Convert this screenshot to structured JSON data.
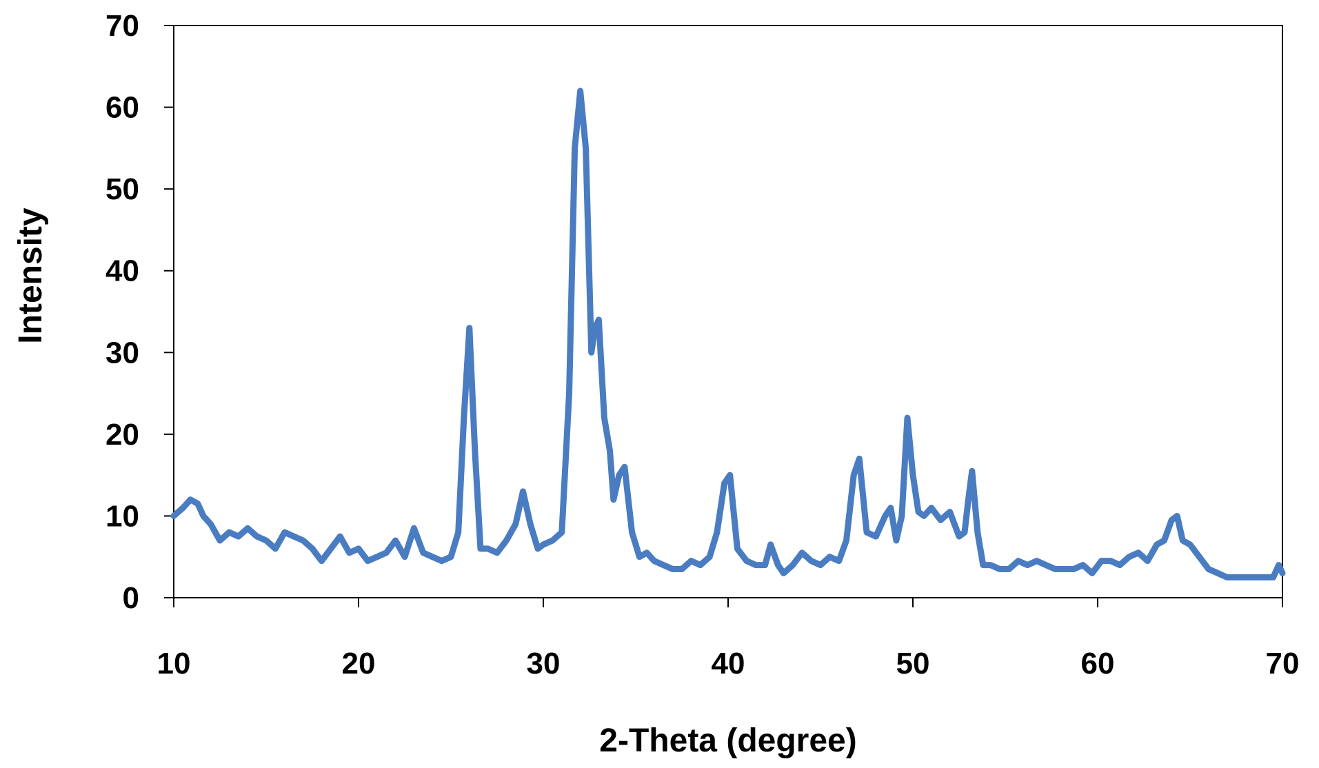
{
  "chart_data": {
    "type": "line",
    "title": "",
    "xlabel": "2-Theta (degree)",
    "ylabel": "Intensity",
    "xlim": [
      10,
      70
    ],
    "ylim": [
      0,
      70
    ],
    "x_ticks": [
      10,
      20,
      30,
      40,
      50,
      60,
      70
    ],
    "y_ticks": [
      0,
      10,
      20,
      30,
      40,
      50,
      60,
      70
    ],
    "grid": false,
    "legend": "none",
    "line_color": "#4a7cc1",
    "series": [
      {
        "x": [
          10,
          10.5,
          10.9,
          11.3,
          11.6,
          12.0,
          12.5,
          13.0,
          13.5,
          14.0,
          14.5,
          15.0,
          15.5,
          16.0,
          16.5,
          17.0,
          17.5,
          18.0,
          18.5,
          19.0,
          19.5,
          20.0,
          20.5,
          21.0,
          21.5,
          22.0,
          22.5,
          23.0,
          23.5,
          24.0,
          24.5,
          25.0,
          25.4,
          25.7,
          26.0,
          26.3,
          26.6,
          27.0,
          27.5,
          28.0,
          28.5,
          28.9,
          29.3,
          29.7,
          30.0,
          30.5,
          31.0,
          31.4,
          31.7,
          32.0,
          32.3,
          32.6,
          32.8,
          33.0,
          33.3,
          33.6,
          33.8,
          34.1,
          34.4,
          34.8,
          35.2,
          35.6,
          36.0,
          36.5,
          37.0,
          37.5,
          38.0,
          38.5,
          39.0,
          39.4,
          39.8,
          40.1,
          40.5,
          41.0,
          41.5,
          42.0,
          42.3,
          42.7,
          43.0,
          43.5,
          44.0,
          44.5,
          45.0,
          45.5,
          46.0,
          46.4,
          46.8,
          47.1,
          47.5,
          48.0,
          48.5,
          48.8,
          49.1,
          49.4,
          49.7,
          50.0,
          50.3,
          50.6,
          51.0,
          51.5,
          52.0,
          52.5,
          52.8,
          53.0,
          53.2,
          53.5,
          53.8,
          54.2,
          54.7,
          55.2,
          55.7,
          56.2,
          56.7,
          57.2,
          57.7,
          58.2,
          58.7,
          59.2,
          59.7,
          60.2,
          60.7,
          61.2,
          61.7,
          62.2,
          62.7,
          63.2,
          63.6,
          64.0,
          64.3,
          64.6,
          65.0,
          65.5,
          66.0,
          66.5,
          67.0,
          67.5,
          68.0,
          68.5,
          69.0,
          69.5,
          69.8,
          70.0
        ],
        "y": [
          10,
          11,
          12,
          11.5,
          10,
          9,
          7,
          8,
          7.5,
          8.5,
          7.5,
          7,
          6,
          8,
          7.5,
          7,
          6,
          4.5,
          6,
          7.5,
          5.5,
          6,
          4.5,
          5,
          5.5,
          7,
          5,
          8.5,
          5.5,
          5,
          4.5,
          5,
          8,
          22,
          33,
          18,
          6,
          6,
          5.5,
          7,
          9,
          13,
          9,
          6,
          6.5,
          7,
          8,
          25,
          55,
          62,
          55,
          30,
          33,
          34,
          22,
          18,
          12,
          15,
          16,
          8,
          5,
          5.5,
          4.5,
          4,
          3.5,
          3.5,
          4.5,
          4,
          5,
          8,
          14,
          15,
          6,
          4.5,
          4,
          4,
          6.5,
          4,
          3,
          4,
          5.5,
          4.5,
          4,
          5,
          4.5,
          7,
          15,
          17,
          8,
          7.5,
          10,
          11,
          7,
          10,
          22,
          15,
          10.5,
          10,
          11,
          9.5,
          10.5,
          7.5,
          8,
          12,
          15.5,
          8,
          4,
          4,
          3.5,
          3.5,
          4.5,
          4,
          4.5,
          4,
          3.5,
          3.5,
          3.5,
          4,
          3,
          4.5,
          4.5,
          4,
          5,
          5.5,
          4.5,
          6.5,
          7,
          9.5,
          10,
          7,
          6.5,
          5,
          3.5,
          3,
          2.5,
          2.5,
          2.5,
          2.5,
          2.5,
          2.5,
          4,
          3
        ]
      }
    ]
  }
}
